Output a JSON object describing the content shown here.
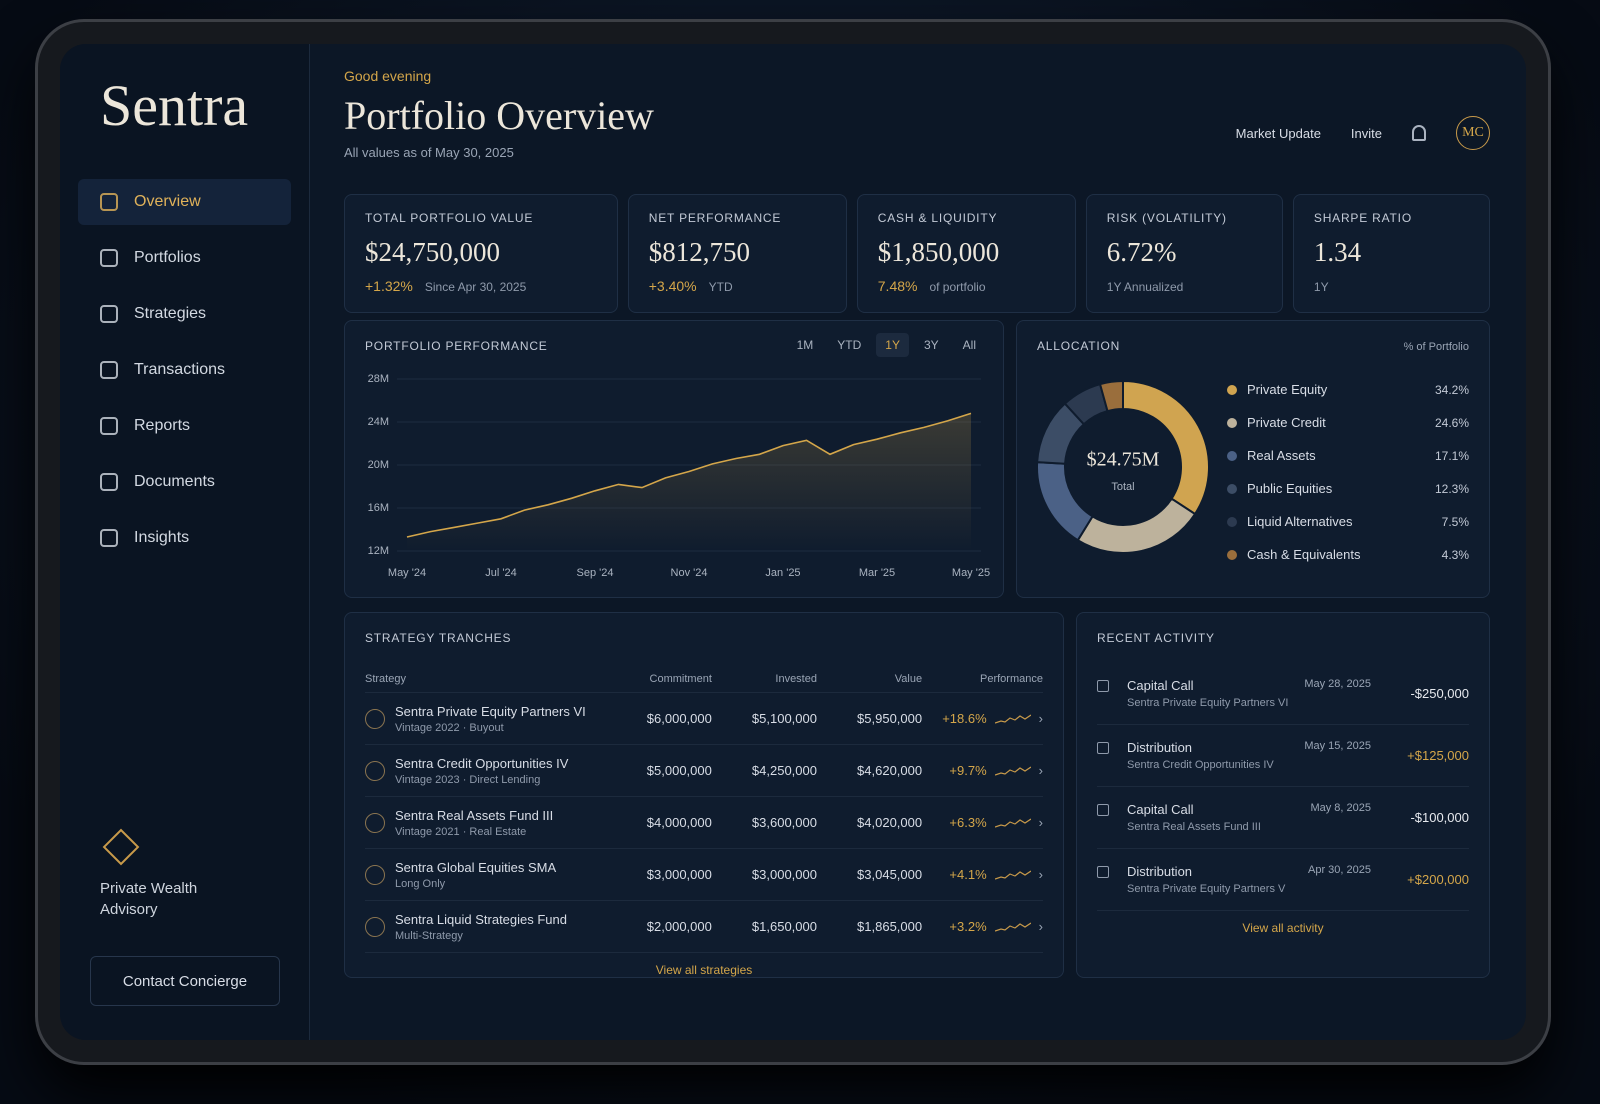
{
  "sidebar": {
    "brand": "Sentra",
    "nav": [
      "Overview",
      "Portfolios",
      "Strategies",
      "Transactions",
      "Reports",
      "Documents",
      "Insights"
    ],
    "footer_brand": "Private Wealth Advisory",
    "contact": "Contact Concierge"
  },
  "header": {
    "greeting": "Good evening",
    "title": "Portfolio Overview",
    "subtitle": "All values as of May 30, 2025",
    "actions": [
      "Market Update",
      "Invite"
    ],
    "avatar": "MC"
  },
  "kpis": [
    {
      "label": "TOTAL PORTFOLIO VALUE",
      "value": "$24,750,000",
      "change": "+1.32%",
      "note": "Since Apr 30, 2025"
    },
    {
      "label": "NET PERFORMANCE",
      "value": "$812,750",
      "change": "+3.40%",
      "note": "YTD"
    },
    {
      "label": "CASH & LIQUIDITY",
      "value": "$1,850,000",
      "change": "7.48%",
      "note": "of portfolio"
    },
    {
      "label": "RISK (VOLATILITY)",
      "value": "6.72%",
      "note": "1Y Annualized"
    },
    {
      "label": "SHARPE RATIO",
      "value": "1.34",
      "note": "1Y"
    }
  ],
  "performance_periods": [
    "1M",
    "YTD",
    "1Y",
    "3Y",
    "All"
  ],
  "chart_data": [
    {
      "type": "line",
      "title": "PORTFOLIO PERFORMANCE",
      "categories": [
        "May '24",
        null,
        null,
        null,
        "Jul '24",
        null,
        null,
        null,
        "Sep '24",
        null,
        null,
        null,
        "Nov '24",
        null,
        null,
        null,
        "Jan '25",
        null,
        null,
        null,
        "Mar '25",
        null,
        null,
        null,
        "May '25"
      ],
      "values": [
        13.3,
        13.8,
        14.2,
        14.6,
        15.0,
        15.8,
        16.3,
        16.9,
        17.6,
        18.2,
        17.9,
        18.8,
        19.4,
        20.1,
        20.6,
        21.0,
        21.8,
        22.3,
        21.0,
        21.9,
        22.4,
        23.0,
        23.5,
        24.1,
        24.8
      ],
      "color": "#d4a64a",
      "ylim": [
        12,
        28
      ],
      "yticks": [
        {
          "value": 12,
          "label": "12M"
        },
        {
          "value": 16,
          "label": "16M"
        },
        {
          "value": 20,
          "label": "20M"
        },
        {
          "value": 24,
          "label": "24M"
        },
        {
          "value": 28,
          "label": "28M"
        }
      ]
    },
    {
      "type": "pie",
      "title": "ALLOCATION",
      "subtitle": "% of Portfolio",
      "center_label": "$24.75M",
      "center_sublabel": "Total",
      "categories": [
        "Private Equity",
        "Private Credit",
        "Real Assets",
        "Public Equities",
        "Liquid Alternatives",
        "Cash & Equivalents"
      ],
      "values": [
        34.2,
        24.6,
        17.1,
        12.3,
        7.5,
        4.3
      ],
      "value_labels": [
        "34.2%",
        "24.6%",
        "17.1%",
        "12.3%",
        "7.5%",
        "4.3%"
      ],
      "colors": [
        "#d0a450",
        "#bdb29c",
        "#4b6186",
        "#3c4d66",
        "#2c3a50",
        "#9a6e3c"
      ]
    }
  ],
  "tranches": {
    "title": "STRATEGY TRANCHES",
    "columns": [
      "Strategy",
      "Commitment",
      "Invested",
      "Value",
      "Performance"
    ],
    "rows": [
      {
        "name": "Sentra Private Equity Partners VI",
        "detail": "Vintage 2022 · Buyout",
        "commitment": "$6,000,000",
        "invested": "$5,100,000",
        "value": "$5,950,000",
        "performance": "+18.6%"
      },
      {
        "name": "Sentra Credit Opportunities IV",
        "detail": "Vintage 2023 · Direct Lending",
        "commitment": "$5,000,000",
        "invested": "$4,250,000",
        "value": "$4,620,000",
        "performance": "+9.7%"
      },
      {
        "name": "Sentra Real Assets Fund III",
        "detail": "Vintage 2021 · Real Estate",
        "commitment": "$4,000,000",
        "invested": "$3,600,000",
        "value": "$4,020,000",
        "performance": "+6.3%"
      },
      {
        "name": "Sentra Global Equities SMA",
        "detail": "Long Only",
        "commitment": "$3,000,000",
        "invested": "$3,000,000",
        "value": "$3,045,000",
        "performance": "+4.1%"
      },
      {
        "name": "Sentra Liquid Strategies Fund",
        "detail": "Multi-Strategy",
        "commitment": "$2,000,000",
        "invested": "$1,650,000",
        "value": "$1,865,000",
        "performance": "+3.2%"
      }
    ],
    "link": "View all strategies"
  },
  "activity": {
    "title": "RECENT ACTIVITY",
    "items": [
      {
        "type": "Capital Call",
        "fund": "Sentra Private Equity Partners VI",
        "date": "May 28, 2025",
        "amount": "-$250,000"
      },
      {
        "type": "Distribution",
        "fund": "Sentra Credit Opportunities IV",
        "date": "May 15, 2025",
        "amount": "+$125,000"
      },
      {
        "type": "Capital Call",
        "fund": "Sentra Real Assets Fund III",
        "date": "May 8, 2025",
        "amount": "-$100,000"
      },
      {
        "type": "Distribution",
        "fund": "Sentra Private Equity Partners V",
        "date": "Apr 30, 2025",
        "amount": "+$200,000"
      }
    ],
    "link": "View all activity"
  }
}
